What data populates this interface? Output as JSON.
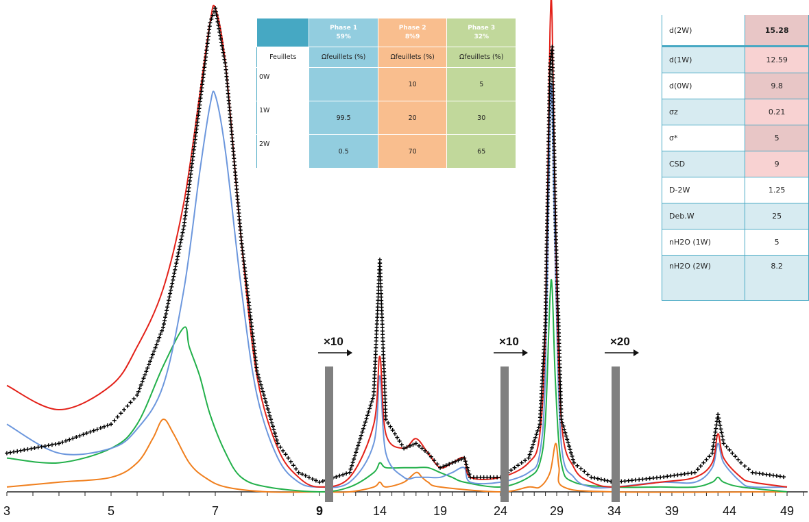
{
  "chart_data": {
    "type": "line",
    "title": "",
    "xlabel": "",
    "ylabel": "",
    "x_tick_labels": [
      "3",
      "5",
      "7",
      "9",
      "14",
      "19",
      "24",
      "29",
      "34",
      "39",
      "44",
      "49"
    ],
    "segments": [
      {
        "x_range": [
          3,
          9
        ],
        "scale_label": ""
      },
      {
        "x_range": [
          9,
          24
        ],
        "scale_label": "×10"
      },
      {
        "x_range": [
          24,
          34
        ],
        "scale_label": "×10"
      },
      {
        "x_range": [
          34,
          50
        ],
        "scale_label": "×20"
      }
    ],
    "series": [
      {
        "name": "",
        "color": "#000000",
        "style": "markers-plus",
        "points": [
          [
            3.0,
            0.08
          ],
          [
            4.0,
            0.1
          ],
          [
            5.0,
            0.14
          ],
          [
            5.5,
            0.2
          ],
          [
            6.0,
            0.34
          ],
          [
            6.4,
            0.55
          ],
          [
            6.7,
            0.8
          ],
          [
            6.9,
            0.97
          ],
          [
            7.0,
            1.0
          ],
          [
            7.2,
            0.88
          ],
          [
            7.5,
            0.52
          ],
          [
            7.8,
            0.25
          ],
          [
            8.2,
            0.1
          ],
          [
            8.6,
            0.04
          ],
          [
            9.0,
            0.02
          ],
          [
            11.5,
            0.04
          ],
          [
            13.5,
            0.2
          ],
          [
            14.0,
            0.48
          ],
          [
            14.5,
            0.15
          ],
          [
            16.0,
            0.09
          ],
          [
            17.0,
            0.1
          ],
          [
            18.0,
            0.08
          ],
          [
            19.0,
            0.05
          ],
          [
            20.0,
            0.06
          ],
          [
            21.0,
            0.07
          ],
          [
            21.5,
            0.03
          ],
          [
            24.0,
            0.03
          ],
          [
            26.5,
            0.07
          ],
          [
            27.5,
            0.14
          ],
          [
            28.0,
            0.35
          ],
          [
            28.4,
            0.88
          ],
          [
            28.6,
            0.92
          ],
          [
            28.9,
            0.55
          ],
          [
            29.4,
            0.15
          ],
          [
            30.5,
            0.06
          ],
          [
            32.0,
            0.03
          ],
          [
            34.0,
            0.02
          ],
          [
            38.0,
            0.03
          ],
          [
            41.0,
            0.04
          ],
          [
            42.5,
            0.08
          ],
          [
            43.0,
            0.16
          ],
          [
            43.5,
            0.1
          ],
          [
            45.0,
            0.06
          ],
          [
            46.0,
            0.04
          ],
          [
            49.0,
            0.03
          ]
        ]
      },
      {
        "name": "",
        "color": "#e32119",
        "style": "line",
        "points": [
          [
            3.0,
            0.22
          ],
          [
            4.0,
            0.17
          ],
          [
            5.0,
            0.22
          ],
          [
            5.5,
            0.3
          ],
          [
            6.0,
            0.42
          ],
          [
            6.4,
            0.6
          ],
          [
            6.7,
            0.82
          ],
          [
            6.9,
            0.97
          ],
          [
            7.0,
            1.0
          ],
          [
            7.2,
            0.88
          ],
          [
            7.5,
            0.52
          ],
          [
            7.8,
            0.24
          ],
          [
            8.2,
            0.09
          ],
          [
            8.6,
            0.03
          ],
          [
            9.0,
            0.01
          ],
          [
            11.5,
            0.03
          ],
          [
            13.5,
            0.14
          ],
          [
            14.0,
            0.28
          ],
          [
            14.5,
            0.12
          ],
          [
            16.0,
            0.09
          ],
          [
            17.0,
            0.11
          ],
          [
            18.0,
            0.08
          ],
          [
            19.0,
            0.05
          ],
          [
            20.0,
            0.06
          ],
          [
            21.0,
            0.07
          ],
          [
            21.5,
            0.03
          ],
          [
            24.0,
            0.03
          ],
          [
            26.5,
            0.06
          ],
          [
            27.5,
            0.12
          ],
          [
            28.0,
            0.35
          ],
          [
            28.4,
            0.95
          ],
          [
            28.6,
            0.97
          ],
          [
            28.9,
            0.55
          ],
          [
            29.4,
            0.15
          ],
          [
            30.5,
            0.05
          ],
          [
            32.0,
            0.02
          ],
          [
            34.0,
            0.01
          ],
          [
            38.0,
            0.02
          ],
          [
            41.0,
            0.03
          ],
          [
            42.5,
            0.06
          ],
          [
            43.0,
            0.12
          ],
          [
            43.5,
            0.07
          ],
          [
            45.0,
            0.03
          ],
          [
            46.0,
            0.02
          ],
          [
            49.0,
            0.01
          ]
        ]
      },
      {
        "name": "",
        "color": "#6c97dd",
        "style": "line",
        "points": [
          [
            3.0,
            0.14
          ],
          [
            4.0,
            0.08
          ],
          [
            5.0,
            0.09
          ],
          [
            5.5,
            0.13
          ],
          [
            6.0,
            0.22
          ],
          [
            6.4,
            0.42
          ],
          [
            6.7,
            0.66
          ],
          [
            6.9,
            0.8
          ],
          [
            7.0,
            0.82
          ],
          [
            7.2,
            0.7
          ],
          [
            7.5,
            0.42
          ],
          [
            7.8,
            0.2
          ],
          [
            8.2,
            0.07
          ],
          [
            8.6,
            0.02
          ],
          [
            9.0,
            0.01
          ],
          [
            11.5,
            0.02
          ],
          [
            13.5,
            0.1
          ],
          [
            14.0,
            0.24
          ],
          [
            14.5,
            0.08
          ],
          [
            16.0,
            0.03
          ],
          [
            17.0,
            0.03
          ],
          [
            18.0,
            0.03
          ],
          [
            19.0,
            0.03
          ],
          [
            20.0,
            0.04
          ],
          [
            21.0,
            0.05
          ],
          [
            21.5,
            0.02
          ],
          [
            24.0,
            0.02
          ],
          [
            26.5,
            0.04
          ],
          [
            27.5,
            0.08
          ],
          [
            28.0,
            0.25
          ],
          [
            28.4,
            0.78
          ],
          [
            28.6,
            0.8
          ],
          [
            28.9,
            0.45
          ],
          [
            29.4,
            0.1
          ],
          [
            30.5,
            0.03
          ],
          [
            32.0,
            0.01
          ],
          [
            34.0,
            0.01
          ],
          [
            38.0,
            0.02
          ],
          [
            41.0,
            0.02
          ],
          [
            42.5,
            0.05
          ],
          [
            43.0,
            0.1
          ],
          [
            43.5,
            0.06
          ],
          [
            45.0,
            0.02
          ],
          [
            46.0,
            0.01
          ],
          [
            49.0,
            0.01
          ]
        ]
      },
      {
        "name": "",
        "color": "#22b04a",
        "style": "line",
        "points": [
          [
            3.0,
            0.07
          ],
          [
            4.0,
            0.06
          ],
          [
            5.0,
            0.09
          ],
          [
            5.5,
            0.14
          ],
          [
            6.0,
            0.26
          ],
          [
            6.4,
            0.34
          ],
          [
            6.5,
            0.3
          ],
          [
            6.7,
            0.24
          ],
          [
            6.9,
            0.16
          ],
          [
            7.2,
            0.08
          ],
          [
            7.5,
            0.03
          ],
          [
            8.0,
            0.01
          ],
          [
            9.0,
            0.0
          ],
          [
            11.5,
            0.01
          ],
          [
            13.5,
            0.04
          ],
          [
            14.0,
            0.06
          ],
          [
            14.5,
            0.05
          ],
          [
            16.0,
            0.05
          ],
          [
            17.0,
            0.05
          ],
          [
            18.0,
            0.05
          ],
          [
            19.0,
            0.04
          ],
          [
            20.0,
            0.03
          ],
          [
            21.0,
            0.02
          ],
          [
            24.0,
            0.01
          ],
          [
            26.5,
            0.03
          ],
          [
            27.5,
            0.06
          ],
          [
            28.0,
            0.15
          ],
          [
            28.4,
            0.4
          ],
          [
            28.6,
            0.42
          ],
          [
            28.9,
            0.22
          ],
          [
            29.4,
            0.06
          ],
          [
            30.5,
            0.02
          ],
          [
            34.0,
            0.01
          ],
          [
            38.0,
            0.01
          ],
          [
            41.0,
            0.01
          ],
          [
            42.5,
            0.02
          ],
          [
            43.0,
            0.03
          ],
          [
            43.5,
            0.02
          ],
          [
            45.0,
            0.01
          ],
          [
            49.0,
            0.0
          ]
        ]
      },
      {
        "name": "",
        "color": "#f07f1d",
        "style": "line",
        "points": [
          [
            3.0,
            0.01
          ],
          [
            4.0,
            0.02
          ],
          [
            5.0,
            0.03
          ],
          [
            5.5,
            0.06
          ],
          [
            5.8,
            0.11
          ],
          [
            6.0,
            0.15
          ],
          [
            6.2,
            0.12
          ],
          [
            6.5,
            0.06
          ],
          [
            6.8,
            0.03
          ],
          [
            7.2,
            0.01
          ],
          [
            8.0,
            0.0
          ],
          [
            9.0,
            0.0
          ],
          [
            11.5,
            0.0
          ],
          [
            13.5,
            0.01
          ],
          [
            14.0,
            0.02
          ],
          [
            14.5,
            0.01
          ],
          [
            16.0,
            0.02
          ],
          [
            17.0,
            0.04
          ],
          [
            17.5,
            0.03
          ],
          [
            18.0,
            0.02
          ],
          [
            19.0,
            0.01
          ],
          [
            24.0,
            0.0
          ],
          [
            26.5,
            0.01
          ],
          [
            27.5,
            0.01
          ],
          [
            28.4,
            0.04
          ],
          [
            28.9,
            0.1
          ],
          [
            29.2,
            0.05
          ],
          [
            29.6,
            0.01
          ],
          [
            34.0,
            0.0
          ],
          [
            49.0,
            0.0
          ]
        ]
      }
    ],
    "grid": false,
    "legend": "none"
  },
  "phase_table": {
    "phase1": {
      "title": "Phase 1",
      "pct": "59%"
    },
    "phase2": {
      "title": "Phase 2",
      "pct": "8%9"
    },
    "phase3": {
      "title": "Phase 3",
      "pct": "32%"
    },
    "row_header": "Feuillets",
    "col_header": "Ωfeuillets (%)",
    "rows": [
      {
        "label": "0W",
        "p1": "",
        "p2": "10",
        "p3": "5"
      },
      {
        "label": "1W",
        "p1": "99.5",
        "p2": "20",
        "p3": "30"
      },
      {
        "label": "2W",
        "p1": "0.5",
        "p2": "70",
        "p3": "65"
      }
    ]
  },
  "param_table": [
    {
      "name": "d(2W)",
      "value": "15.28"
    },
    {
      "name": "d(1W)",
      "value": "12.59"
    },
    {
      "name": "d(0W)",
      "value": "9.8"
    },
    {
      "name": "σz",
      "value": "0.21"
    },
    {
      "name": "σ*",
      "value": "5"
    },
    {
      "name": "CSD",
      "value": "9"
    },
    {
      "name": "D-2W",
      "value": "1.25"
    },
    {
      "name": "Deb.W",
      "value": "25"
    },
    {
      "name": "nH2O (1W)",
      "value": "5"
    },
    {
      "name": "nH2O (2W)",
      "value": "8.2"
    }
  ]
}
